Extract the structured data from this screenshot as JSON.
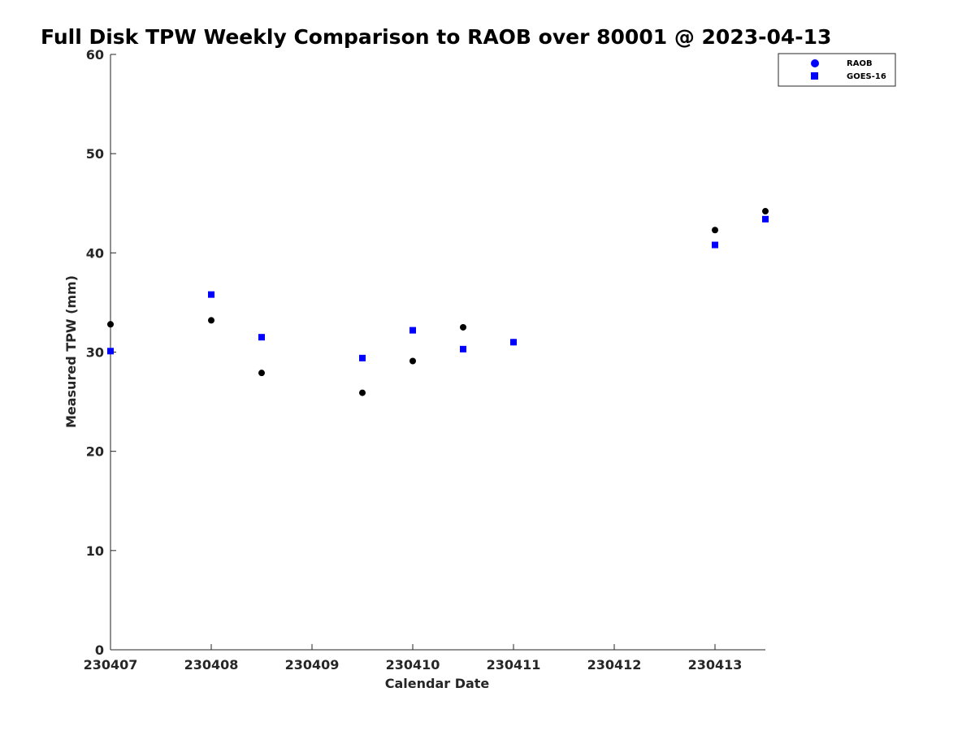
{
  "chart_data": {
    "type": "scatter",
    "title": "Full Disk TPW Weekly Comparison to RAOB over 80001 @ 2023-04-13",
    "xlabel": "Calendar Date",
    "ylabel": "Measured TPW (mm)",
    "xlim": [
      0,
      6.5
    ],
    "ylim": [
      0,
      60
    ],
    "x_ticks": [
      0,
      1,
      2,
      3,
      4,
      5,
      6
    ],
    "x_tick_labels": [
      "230407",
      "230408",
      "230409",
      "230410",
      "230411",
      "230412",
      "230413"
    ],
    "y_ticks": [
      0,
      10,
      20,
      30,
      40,
      50,
      60
    ],
    "y_tick_labels": [
      "0",
      "10",
      "20",
      "30",
      "40",
      "50",
      "60"
    ],
    "legend_position": "top-right",
    "series": [
      {
        "name": "RAOB",
        "marker": "circle",
        "legend_color": "#0000ff",
        "color": "#000000",
        "x": [
          0,
          1,
          1.5,
          2.5,
          3,
          3.5,
          4,
          6,
          6.5
        ],
        "y": [
          32.8,
          33.2,
          27.9,
          25.9,
          29.1,
          32.5,
          31.0,
          42.3,
          44.2
        ]
      },
      {
        "name": "GOES-16",
        "marker": "square",
        "legend_color": "#0000ff",
        "color": "#0000ff",
        "x": [
          0,
          1,
          1.5,
          2.5,
          3,
          3.5,
          4,
          6,
          6.5
        ],
        "y": [
          30.1,
          35.8,
          31.5,
          29.4,
          32.2,
          30.3,
          31.0,
          40.8,
          43.4
        ]
      }
    ]
  }
}
